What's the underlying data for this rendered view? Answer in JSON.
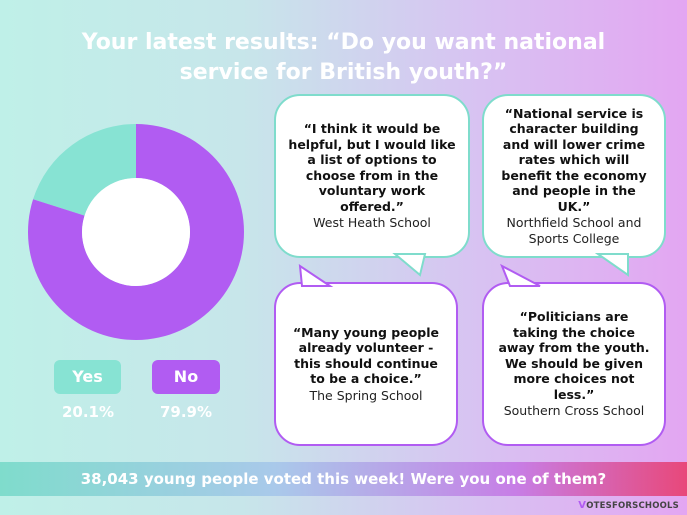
{
  "title": {
    "line1": "Your latest results: “Do you want national",
    "line2": "service for British youth?”"
  },
  "colors": {
    "yes": "#87e3d3",
    "no": "#b15cf2",
    "accent_pink": "#e8487a"
  },
  "chart_data": {
    "type": "pie",
    "categories": [
      "Yes",
      "No"
    ],
    "values": [
      20.1,
      79.9
    ],
    "labels": [
      "20.1%",
      "79.9%"
    ],
    "colors": [
      "#87e3d3",
      "#b15cf2"
    ],
    "donut": true
  },
  "quotes": [
    {
      "text": "“I think it would be helpful, but I would like a list of options to choose from in the voluntary work offered.”",
      "school": "West Heath School"
    },
    {
      "text": "“National service is character building and will lower crime rates which will benefit the economy and people in the UK.”",
      "school": "Northfield School and Sports College"
    },
    {
      "text": "“Many young people already volunteer - this should continue to be a choice.”",
      "school": "The Spring School"
    },
    {
      "text": "“Politicians are taking the choice away from the youth. We should be given more choices not less.”",
      "school": "Southern Cross School"
    }
  ],
  "footer": {
    "banner": "38,043 young people voted this week! Were you one of them?",
    "logo_mark": "V",
    "logo_text": "OTESFORSCHOOLS"
  }
}
